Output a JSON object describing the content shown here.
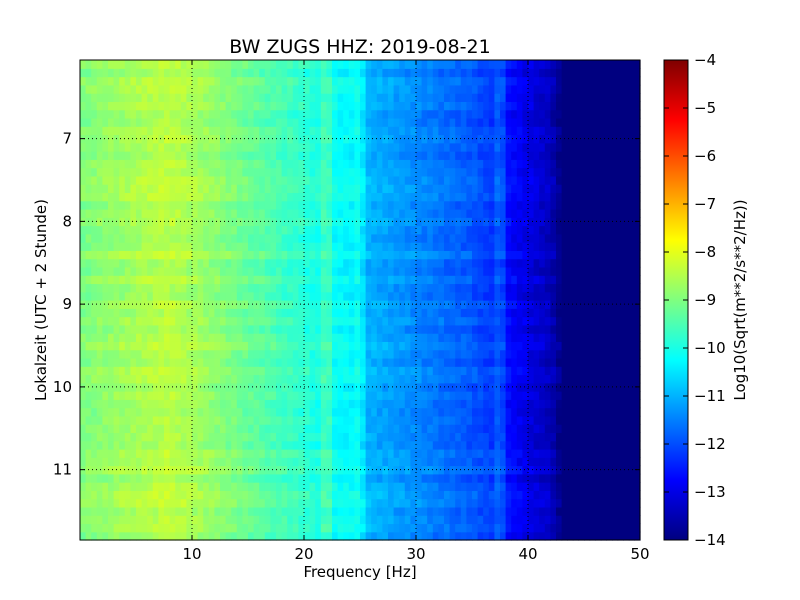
{
  "chart_data": {
    "type": "heatmap",
    "title": "BW ZUGS HHZ: 2019-08-21",
    "xlabel": "Frequency [Hz]",
    "ylabel": "Lokalzeit (UTC + 2 Stunde)",
    "colorbar_label": "Log10(Sqrt(m**2/s**2/Hz))",
    "colormap": "jet",
    "xlim": [
      0,
      50
    ],
    "ylim": [
      11.85,
      6.05
    ],
    "y_inverted": true,
    "grid": true,
    "x_ticks": [
      "10",
      "20",
      "30",
      "40",
      "50"
    ],
    "y_ticks": [
      "7",
      "8",
      "9",
      "10",
      "11"
    ],
    "clim": [
      -14,
      -4
    ],
    "colorbar_ticks": [
      "-4",
      "-5",
      "-6",
      "-7",
      "-8",
      "-9",
      "-10",
      "-11",
      "-12",
      "-13",
      "-14"
    ],
    "spectrum_profile": {
      "frequency_hz": [
        0,
        5,
        8,
        10,
        15,
        20,
        22,
        24.5,
        25,
        30,
        35,
        37,
        38,
        40,
        42,
        43,
        50
      ],
      "log10_amplitude": [
        -9.0,
        -8.6,
        -8.4,
        -8.6,
        -9.2,
        -9.8,
        -10.1,
        -10.3,
        -10.9,
        -11.4,
        -11.9,
        -12.2,
        -12.6,
        -13.0,
        -13.4,
        -14.0,
        -14.0
      ]
    },
    "spectral_lines_hz": [
      22,
      25,
      37.5
    ],
    "time_rows": 58,
    "freq_bins": 100
  }
}
